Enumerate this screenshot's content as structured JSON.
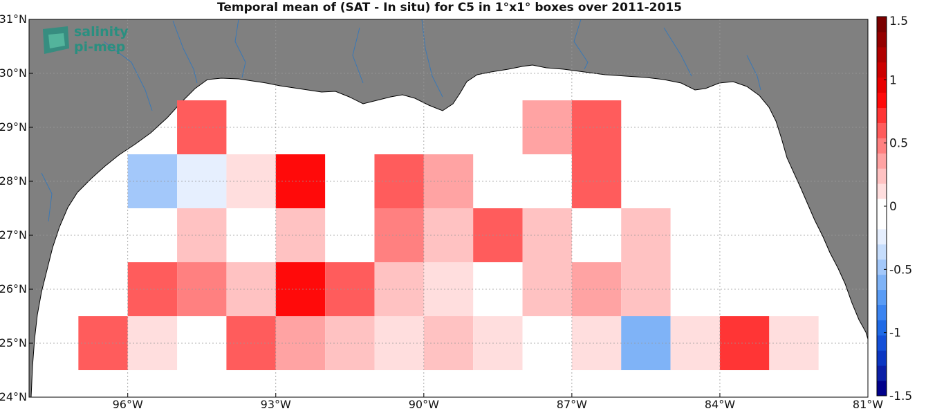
{
  "chart_data": {
    "type": "heatmap",
    "title": "Temporal mean of (SAT - In situ) for C5 in 1°x1° boxes over 2011-2015",
    "xlim": [
      -98,
      -81
    ],
    "ylim": [
      24,
      31
    ],
    "x_ticks": [
      -96,
      -93,
      -90,
      -87,
      -84,
      -81
    ],
    "x_tick_labels": [
      "96°W",
      "93°W",
      "90°W",
      "87°W",
      "84°W",
      "81°W"
    ],
    "y_ticks": [
      24,
      25,
      26,
      27,
      28,
      29,
      30,
      31
    ],
    "y_tick_labels": [
      "24°N",
      "25°N",
      "26°N",
      "27°N",
      "28°N",
      "29°N",
      "30°N",
      "31°N"
    ],
    "grid": true,
    "colorbar": {
      "range": [
        -1.5,
        1.5
      ],
      "ticks": [
        1.5,
        1,
        0.5,
        0,
        -0.5,
        -1,
        -1.5
      ],
      "tick_labels": [
        "1.5",
        "1",
        "0.5",
        "0",
        "-0.5",
        "-1",
        "-1.5"
      ],
      "colors": [
        "#00008b",
        "#0b1fa6",
        "#0b36c2",
        "#1450d8",
        "#1f6ae6",
        "#3b84f0",
        "#5a9cf5",
        "#7fb3f7",
        "#a3c8fa",
        "#c6ddfc",
        "#e6effe",
        "#ffffff",
        "#ffffff",
        "#ffdede",
        "#ffc2c2",
        "#ffa3a3",
        "#ff8080",
        "#ff5c5c",
        "#ff3535",
        "#ff0a0a",
        "#e80000",
        "#cc0000",
        "#b00000",
        "#940000",
        "#7a0000"
      ]
    },
    "cells": [
      {
        "lon": -94.5,
        "lat": 29,
        "value": 0.55
      },
      {
        "lon": -87.5,
        "lat": 29,
        "value": 0.35
      },
      {
        "lon": -86.5,
        "lat": 29,
        "value": 0.55
      },
      {
        "lon": -95.5,
        "lat": 28,
        "value": -0.45
      },
      {
        "lon": -94.5,
        "lat": 28,
        "value": -0.2
      },
      {
        "lon": -93.5,
        "lat": 28,
        "value": 0.15
      },
      {
        "lon": -92.5,
        "lat": 28,
        "value": 0.85
      },
      {
        "lon": -90.5,
        "lat": 28,
        "value": 0.55
      },
      {
        "lon": -89.5,
        "lat": 28,
        "value": 0.35
      },
      {
        "lon": -86.5,
        "lat": 28,
        "value": 0.65
      },
      {
        "lon": -94.5,
        "lat": 27,
        "value": 0.25
      },
      {
        "lon": -92.5,
        "lat": 27,
        "value": 0.25
      },
      {
        "lon": -90.5,
        "lat": 27,
        "value": 0.45
      },
      {
        "lon": -89.5,
        "lat": 27,
        "value": 0.25
      },
      {
        "lon": -88.5,
        "lat": 27,
        "value": 0.55
      },
      {
        "lon": -87.5,
        "lat": 27,
        "value": 0.25
      },
      {
        "lon": -85.5,
        "lat": 27,
        "value": 0.25
      },
      {
        "lon": -95.5,
        "lat": 26,
        "value": 0.55
      },
      {
        "lon": -94.5,
        "lat": 26,
        "value": 0.45
      },
      {
        "lon": -93.5,
        "lat": 26,
        "value": 0.25
      },
      {
        "lon": -92.5,
        "lat": 26,
        "value": 0.85
      },
      {
        "lon": -91.5,
        "lat": 26,
        "value": 0.55
      },
      {
        "lon": -90.5,
        "lat": 26,
        "value": 0.25
      },
      {
        "lon": -89.5,
        "lat": 26,
        "value": 0.15
      },
      {
        "lon": -87.5,
        "lat": 26,
        "value": 0.25
      },
      {
        "lon": -86.5,
        "lat": 26,
        "value": 0.35
      },
      {
        "lon": -85.5,
        "lat": 26,
        "value": 0.25
      },
      {
        "lon": -96.5,
        "lat": 25,
        "value": 0.55
      },
      {
        "lon": -95.5,
        "lat": 25,
        "value": 0.15
      },
      {
        "lon": -93.5,
        "lat": 25,
        "value": 0.55
      },
      {
        "lon": -92.5,
        "lat": 25,
        "value": 0.35
      },
      {
        "lon": -91.5,
        "lat": 25,
        "value": 0.25
      },
      {
        "lon": -90.5,
        "lat": 25,
        "value": 0.15
      },
      {
        "lon": -89.5,
        "lat": 25,
        "value": 0.25
      },
      {
        "lon": -88.5,
        "lat": 25,
        "value": 0.15
      },
      {
        "lon": -86.5,
        "lat": 25,
        "value": 0.15
      },
      {
        "lon": -85.5,
        "lat": 25,
        "value": -0.6
      },
      {
        "lon": -84.5,
        "lat": 25,
        "value": 0.15
      },
      {
        "lon": -83.5,
        "lat": 25,
        "value": 0.75
      },
      {
        "lon": -82.5,
        "lat": 25,
        "value": 0.15
      }
    ]
  },
  "logo": {
    "line1": "salinity",
    "line2": "pi-mep",
    "color": "#2a8f80"
  },
  "colors": {
    "land": "#808080",
    "ocean": "#ffffff",
    "rivers": "#3a78b5"
  }
}
